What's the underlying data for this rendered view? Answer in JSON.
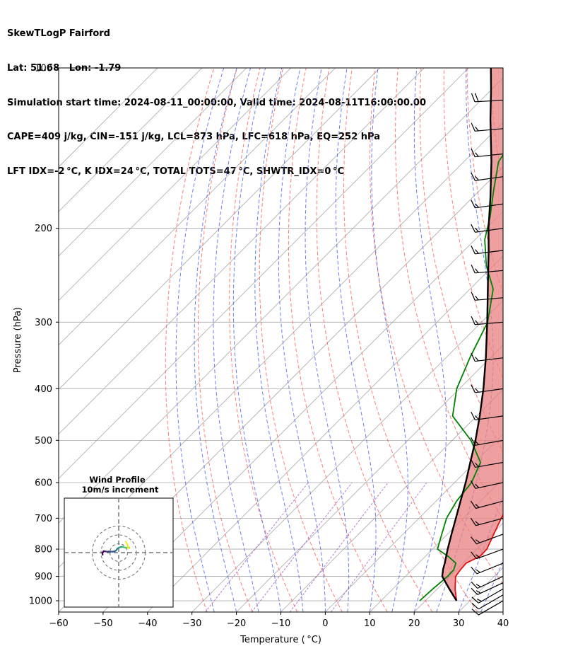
{
  "header": {
    "title": "SkewTLogP Fairford",
    "location": "Lat: 51.68   Lon: -1.79",
    "times": "Simulation start time: 2024-08-11_00:00:00, Valid time: 2024-08-11T16:00:00.00",
    "params": "CAPE=409 j/kg, CIN=-151 j/kg, LCL=873 hPa, LFC=618 hPa, EQ=252 hPa",
    "indices": "LFT IDX=-2 °C, K IDX=24 °C, TOTAL TOTS=47 °C, SHWTR_IDX=0 °C"
  },
  "chart_data": {
    "type": "skewt-logp",
    "xlabel": "Temperature ( °C)",
    "ylabel": "Pressure (hPa)",
    "xlim": [
      -60,
      40
    ],
    "ylim": [
      1050,
      100
    ],
    "y_scale": "log",
    "x_ticks": [
      "−60",
      "−50",
      "−40",
      "−30",
      "−20",
      "−10",
      "0",
      "10",
      "20",
      "30",
      "40"
    ],
    "y_ticks": [
      {
        "p": 100,
        "label": "100"
      },
      {
        "p": 200,
        "label": "200"
      },
      {
        "p": 300,
        "label": "300"
      },
      {
        "p": 400,
        "label": "400"
      },
      {
        "p": 500,
        "label": "500"
      },
      {
        "p": 600,
        "label": "600"
      },
      {
        "p": 700,
        "label": "700"
      },
      {
        "p": 800,
        "label": "800"
      },
      {
        "p": 900,
        "label": "900"
      },
      {
        "p": 1000,
        "label": "1000"
      }
    ],
    "colors": {
      "temperature": "#e41010",
      "dewpoint": "#008000",
      "parcel": "#000000",
      "cape": "#7aaad0",
      "cin": "#e88080",
      "dry_adiabat": "#ff5050",
      "moist_adiabat": "#4b5ef0",
      "mixing_ratio": "#9a3fc0",
      "isotherm": "#a8a8a8"
    },
    "series": [
      {
        "key": "temperature",
        "points": [
          {
            "p": 1000,
            "t": 27.0
          },
          {
            "p": 950,
            "t": 24.0
          },
          {
            "p": 900,
            "t": 21.3
          },
          {
            "p": 875,
            "t": 20.9
          },
          {
            "p": 850,
            "t": 20.7
          },
          {
            "p": 825,
            "t": 22.3
          },
          {
            "p": 800,
            "t": 22.2
          },
          {
            "p": 750,
            "t": 20.4
          },
          {
            "p": 700,
            "t": 18.5
          },
          {
            "p": 650,
            "t": 16.8
          },
          {
            "p": 600,
            "t": 14.6
          },
          {
            "p": 550,
            "t": 11.6
          },
          {
            "p": 500,
            "t": 8.1
          },
          {
            "p": 450,
            "t": 4.1
          },
          {
            "p": 400,
            "t": -0.3
          },
          {
            "p": 350,
            "t": -6.1
          },
          {
            "p": 300,
            "t": -13.3
          },
          {
            "p": 270,
            "t": -18.4
          },
          {
            "p": 252,
            "t": -22.5
          },
          {
            "p": 240,
            "t": -24.2
          },
          {
            "p": 225,
            "t": -25.7
          },
          {
            "p": 200,
            "t": -27.5
          },
          {
            "p": 180,
            "t": -30.5
          },
          {
            "p": 160,
            "t": -35.0
          },
          {
            "p": 140,
            "t": -40.0
          },
          {
            "p": 125,
            "t": -44.8
          },
          {
            "p": 110,
            "t": -48.5
          },
          {
            "p": 100,
            "t": -51.5
          }
        ]
      },
      {
        "key": "dewpoint",
        "points": [
          {
            "p": 1000,
            "t": 18.7
          },
          {
            "p": 950,
            "t": 19.0
          },
          {
            "p": 900,
            "t": 19.5
          },
          {
            "p": 875,
            "t": 19.4
          },
          {
            "p": 850,
            "t": 18.4
          },
          {
            "p": 825,
            "t": 15.1
          },
          {
            "p": 800,
            "t": 11.1
          },
          {
            "p": 750,
            "t": 8.7
          },
          {
            "p": 700,
            "t": 6.2
          },
          {
            "p": 650,
            "t": 4.6
          },
          {
            "p": 600,
            "t": 3.8
          },
          {
            "p": 550,
            "t": 1.3
          },
          {
            "p": 500,
            "t": -5.8
          },
          {
            "p": 450,
            "t": -15.4
          },
          {
            "p": 400,
            "t": -20.6
          },
          {
            "p": 350,
            "t": -24.6
          },
          {
            "p": 300,
            "t": -28.6
          },
          {
            "p": 260,
            "t": -34.8
          },
          {
            "p": 235,
            "t": -41.6
          },
          {
            "p": 210,
            "t": -47.8
          },
          {
            "p": 190,
            "t": -51.8
          },
          {
            "p": 170,
            "t": -56.8
          },
          {
            "p": 150,
            "t": -62.2
          },
          {
            "p": 135,
            "t": -64.0
          },
          {
            "p": 120,
            "t": -64.3
          },
          {
            "p": 100,
            "t": -64.3
          }
        ]
      },
      {
        "key": "parcel",
        "points": [
          {
            "p": 1000,
            "t": 27.0
          },
          {
            "p": 950,
            "t": 22.7
          },
          {
            "p": 900,
            "t": 18.3
          },
          {
            "p": 873,
            "t": 16.9
          },
          {
            "p": 850,
            "t": 15.9
          },
          {
            "p": 800,
            "t": 13.4
          },
          {
            "p": 750,
            "t": 10.9
          },
          {
            "p": 700,
            "t": 8.3
          },
          {
            "p": 650,
            "t": 5.5
          },
          {
            "p": 600,
            "t": 2.5
          },
          {
            "p": 550,
            "t": -1.0
          },
          {
            "p": 500,
            "t": -4.8
          },
          {
            "p": 450,
            "t": -9.3
          },
          {
            "p": 400,
            "t": -14.6
          },
          {
            "p": 350,
            "t": -21.0
          },
          {
            "p": 300,
            "t": -28.7
          },
          {
            "p": 252,
            "t": -37.6
          },
          {
            "p": 220,
            "t": -44.5
          },
          {
            "p": 200,
            "t": -49.5
          },
          {
            "p": 175,
            "t": -56.0
          },
          {
            "p": 150,
            "t": -63.8
          },
          {
            "p": 125,
            "t": -73.5
          },
          {
            "p": 110,
            "t": -80.0
          },
          {
            "p": 100,
            "t": -85.0
          }
        ]
      }
    ],
    "winds": [
      {
        "p": 1000,
        "dir": 240,
        "spd_kt": 12
      },
      {
        "p": 975,
        "dir": 240,
        "spd_kt": 12
      },
      {
        "p": 950,
        "dir": 240,
        "spd_kt": 13
      },
      {
        "p": 925,
        "dir": 245,
        "spd_kt": 13
      },
      {
        "p": 900,
        "dir": 245,
        "spd_kt": 14
      },
      {
        "p": 850,
        "dir": 248,
        "spd_kt": 14
      },
      {
        "p": 800,
        "dir": 250,
        "spd_kt": 15
      },
      {
        "p": 750,
        "dir": 250,
        "spd_kt": 15
      },
      {
        "p": 700,
        "dir": 255,
        "spd_kt": 15
      },
      {
        "p": 650,
        "dir": 255,
        "spd_kt": 15
      },
      {
        "p": 600,
        "dir": 258,
        "spd_kt": 15
      },
      {
        "p": 550,
        "dir": 260,
        "spd_kt": 15
      },
      {
        "p": 500,
        "dir": 260,
        "spd_kt": 15
      },
      {
        "p": 450,
        "dir": 262,
        "spd_kt": 16
      },
      {
        "p": 400,
        "dir": 262,
        "spd_kt": 16
      },
      {
        "p": 350,
        "dir": 263,
        "spd_kt": 16
      },
      {
        "p": 300,
        "dir": 265,
        "spd_kt": 17
      },
      {
        "p": 270,
        "dir": 265,
        "spd_kt": 17
      },
      {
        "p": 240,
        "dir": 265,
        "spd_kt": 17
      },
      {
        "p": 220,
        "dir": 263,
        "spd_kt": 17
      },
      {
        "p": 200,
        "dir": 262,
        "spd_kt": 16
      },
      {
        "p": 180,
        "dir": 262,
        "spd_kt": 16
      },
      {
        "p": 160,
        "dir": 262,
        "spd_kt": 16
      },
      {
        "p": 145,
        "dir": 264,
        "spd_kt": 17
      },
      {
        "p": 130,
        "dir": 265,
        "spd_kt": 17
      },
      {
        "p": 115,
        "dir": 267,
        "spd_kt": 18
      }
    ],
    "hodograph": {
      "title": "Wind Profile",
      "subtitle": "10m/s increment",
      "rings_ms": [
        10,
        20,
        30
      ],
      "points": [
        {
          "u": -18.2,
          "v": -2.4
        },
        {
          "u": -18.5,
          "v": -0.2
        },
        {
          "u": -17.0,
          "v": 1.6
        },
        {
          "u": -15.0,
          "v": 1.4
        },
        {
          "u": -12.5,
          "v": 1.0
        },
        {
          "u": -10.0,
          "v": 1.3
        },
        {
          "u": -7.0,
          "v": 1.0
        },
        {
          "u": -4.5,
          "v": 1.5
        },
        {
          "u": -3.0,
          "v": 2.4
        },
        {
          "u": -1.5,
          "v": 4.5
        },
        {
          "u": 0.5,
          "v": 5.8
        },
        {
          "u": 2.5,
          "v": 6.4
        },
        {
          "u": 4.5,
          "v": 6.6
        },
        {
          "u": 6.5,
          "v": 5.9
        },
        {
          "u": 8.0,
          "v": 5.5
        },
        {
          "u": 10.0,
          "v": 5.8
        },
        {
          "u": 12.0,
          "v": 5.8
        },
        {
          "u": 11.5,
          "v": 4.5
        },
        {
          "u": 9.5,
          "v": 9.8
        },
        {
          "u": 8.0,
          "v": 12.5
        }
      ]
    }
  }
}
